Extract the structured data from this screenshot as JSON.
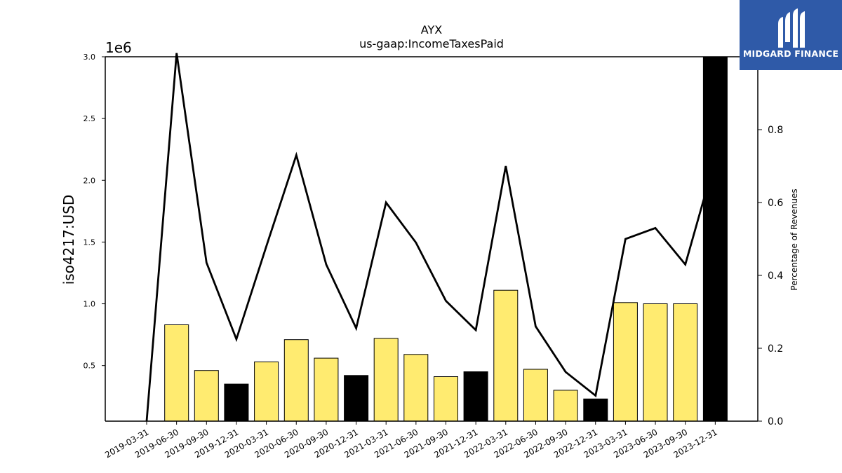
{
  "chart_data": {
    "type": "bar",
    "title": "AYX",
    "subtitle": "us-gaap:IncomeTaxesPaid",
    "ylabel": "iso4217:USD",
    "ylabel_right": "Percentage of Revenues",
    "y_multiplier_label": "1e6",
    "ylim": [
      0.05,
      3.0
    ],
    "ylim_right": [
      0.0,
      1.0
    ],
    "yticks": [
      "0.5",
      "1.0",
      "1.5",
      "2.0",
      "2.5",
      "3.0"
    ],
    "yticks_right": [
      "0.0",
      "0.2",
      "0.4",
      "0.6",
      "0.8"
    ],
    "categories": [
      "2019-03-31",
      "2019-06-30",
      "2019-09-30",
      "2019-12-31",
      "2020-03-31",
      "2020-06-30",
      "2020-09-30",
      "2020-12-31",
      "2021-03-31",
      "2021-06-30",
      "2021-09-30",
      "2021-12-31",
      "2022-03-31",
      "2022-06-30",
      "2022-09-30",
      "2022-12-31",
      "2023-03-31",
      "2023-06-30",
      "2023-09-30",
      "2023-12-31"
    ],
    "series": [
      {
        "kind": "bar",
        "axis": "left",
        "values": [
          0,
          0.83,
          0.46,
          0.35,
          0.53,
          0.71,
          0.56,
          0.42,
          0.72,
          0.59,
          0.41,
          0.45,
          1.11,
          0.47,
          0.3,
          0.23,
          1.01,
          1.0,
          1.0,
          3.0
        ],
        "highlight": [
          false,
          false,
          false,
          true,
          false,
          false,
          false,
          true,
          false,
          false,
          false,
          true,
          false,
          false,
          false,
          true,
          false,
          false,
          false,
          true
        ]
      },
      {
        "kind": "line",
        "axis": "right",
        "values": [
          0.0,
          1.01,
          0.435,
          0.225,
          0.48,
          0.73,
          0.43,
          0.255,
          0.6,
          0.49,
          0.33,
          0.25,
          0.7,
          0.26,
          0.135,
          0.07,
          0.5,
          0.53,
          0.43,
          0.72
        ]
      }
    ],
    "colors": {
      "bar": "#ffeb70",
      "bar_highlight": "#000000",
      "line": "#000000"
    },
    "grid": false
  },
  "logo": {
    "text": "MIDGARD FINANCE",
    "icon": "midgard-logo-icon"
  }
}
